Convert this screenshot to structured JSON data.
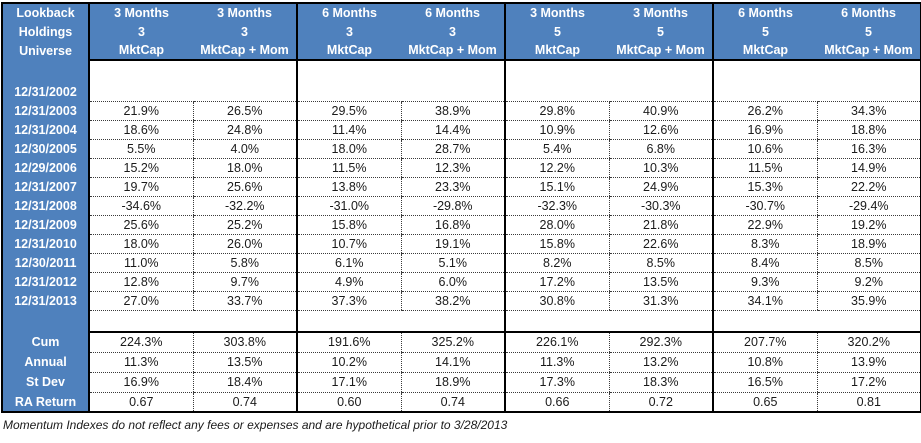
{
  "accent_color": "#4f81bd",
  "header": {
    "corner_labels": [
      "Lookback",
      "Holdings",
      "Universe"
    ],
    "lookback": [
      "3 Months",
      "3 Months",
      "6 Months",
      "6 Months",
      "3 Months",
      "3 Months",
      "6 Months",
      "6 Months"
    ],
    "holdings": [
      "3",
      "3",
      "3",
      "3",
      "5",
      "5",
      "5",
      "5"
    ],
    "universe": [
      "MktCap",
      "MktCap + Mom",
      "MktCap",
      "MktCap + Mom",
      "MktCap",
      "MktCap + Mom",
      "MktCap",
      "MktCap + Mom"
    ]
  },
  "rows": [
    {
      "label": "12/31/2002",
      "values": [
        "",
        "",
        "",
        "",
        "",
        "",
        "",
        ""
      ]
    },
    {
      "label": "12/31/2003",
      "values": [
        "21.9%",
        "26.5%",
        "29.5%",
        "38.9%",
        "29.8%",
        "40.9%",
        "26.2%",
        "34.3%"
      ]
    },
    {
      "label": "12/31/2004",
      "values": [
        "18.6%",
        "24.8%",
        "11.4%",
        "14.4%",
        "10.9%",
        "12.6%",
        "16.9%",
        "18.8%"
      ]
    },
    {
      "label": "12/30/2005",
      "values": [
        "5.5%",
        "4.0%",
        "18.0%",
        "28.7%",
        "5.4%",
        "6.8%",
        "10.6%",
        "16.3%"
      ]
    },
    {
      "label": "12/29/2006",
      "values": [
        "15.2%",
        "18.0%",
        "11.5%",
        "12.3%",
        "12.2%",
        "10.3%",
        "11.5%",
        "14.9%"
      ]
    },
    {
      "label": "12/31/2007",
      "values": [
        "19.7%",
        "25.6%",
        "13.8%",
        "23.3%",
        "15.1%",
        "24.9%",
        "15.3%",
        "22.2%"
      ]
    },
    {
      "label": "12/31/2008",
      "values": [
        "-34.6%",
        "-32.2%",
        "-31.0%",
        "-29.8%",
        "-32.3%",
        "-30.3%",
        "-30.7%",
        "-29.4%"
      ]
    },
    {
      "label": "12/31/2009",
      "values": [
        "25.6%",
        "25.2%",
        "15.8%",
        "16.8%",
        "28.0%",
        "21.8%",
        "22.9%",
        "19.2%"
      ]
    },
    {
      "label": "12/31/2010",
      "values": [
        "18.0%",
        "26.0%",
        "10.7%",
        "19.1%",
        "15.8%",
        "22.6%",
        "8.3%",
        "18.9%"
      ]
    },
    {
      "label": "12/30/2011",
      "values": [
        "11.0%",
        "5.8%",
        "6.1%",
        "5.1%",
        "8.2%",
        "8.5%",
        "8.4%",
        "8.5%"
      ]
    },
    {
      "label": "12/31/2012",
      "values": [
        "12.8%",
        "9.7%",
        "4.9%",
        "6.0%",
        "17.2%",
        "13.5%",
        "9.3%",
        "9.2%"
      ]
    },
    {
      "label": "12/31/2013",
      "values": [
        "27.0%",
        "33.7%",
        "37.3%",
        "38.2%",
        "30.8%",
        "31.3%",
        "34.1%",
        "35.9%"
      ]
    }
  ],
  "summary": [
    {
      "label": "Cum",
      "values": [
        "224.3%",
        "303.8%",
        "191.6%",
        "325.2%",
        "226.1%",
        "292.3%",
        "207.7%",
        "320.2%"
      ]
    },
    {
      "label": "Annual",
      "values": [
        "11.3%",
        "13.5%",
        "10.2%",
        "14.1%",
        "11.3%",
        "13.2%",
        "10.8%",
        "13.9%"
      ]
    },
    {
      "label": "St Dev",
      "values": [
        "16.9%",
        "18.4%",
        "17.1%",
        "18.9%",
        "17.3%",
        "18.3%",
        "16.5%",
        "17.2%"
      ]
    },
    {
      "label": "RA Return",
      "values": [
        "0.67",
        "0.74",
        "0.60",
        "0.74",
        "0.66",
        "0.72",
        "0.65",
        "0.81"
      ]
    }
  ],
  "footnote": "Momentum Indexes do not reflect any fees or expenses and are hypothetical prior to 3/28/2013"
}
